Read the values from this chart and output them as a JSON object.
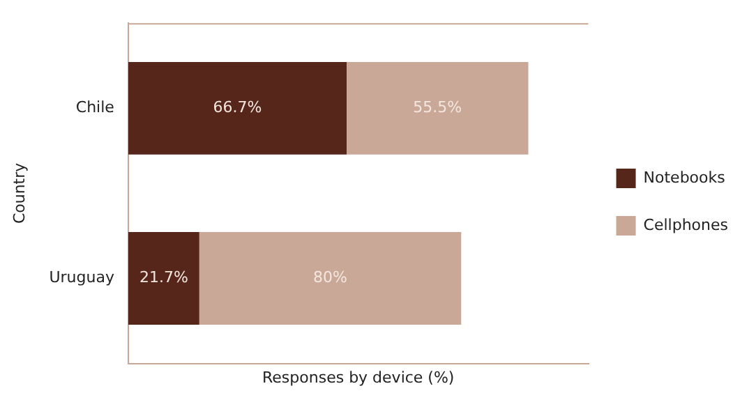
{
  "chart_data": {
    "type": "bar",
    "orientation": "horizontal",
    "stacked": true,
    "xlabel": "Responses by device (%)",
    "ylabel": "Country",
    "categories": [
      "Chile",
      "Uruguay"
    ],
    "series": [
      {
        "name": "Notebooks",
        "color": "#56261b",
        "values": [
          66.7,
          21.7
        ],
        "value_labels": [
          "66.7%",
          "21.7%"
        ]
      },
      {
        "name": "Cellphones",
        "color": "#c9a898",
        "values": [
          55.5,
          80
        ],
        "value_labels": [
          "55.5%",
          "80%"
        ]
      }
    ],
    "tick_labels": "y",
    "legend": "right"
  }
}
